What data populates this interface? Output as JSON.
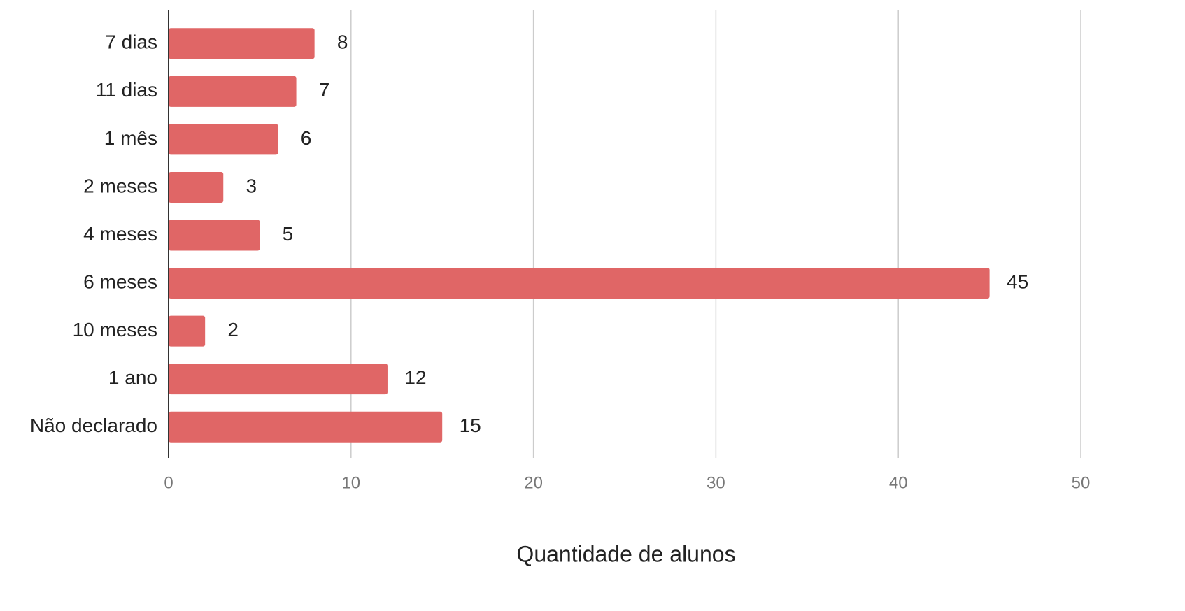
{
  "chart_data": {
    "type": "bar",
    "orientation": "horizontal",
    "categories": [
      "7 dias",
      "11 dias",
      "1 mês",
      "2 meses",
      "4 meses",
      "6 meses",
      "10 meses",
      "1 ano",
      "Não declarado"
    ],
    "values": [
      8,
      7,
      6,
      3,
      5,
      45,
      2,
      12,
      15
    ],
    "color": "#e06666",
    "xlabel": "Quantidade de alunos",
    "xlim": [
      0,
      50
    ],
    "xticks": [
      0,
      10,
      20,
      30,
      40,
      50
    ],
    "grid": true
  }
}
